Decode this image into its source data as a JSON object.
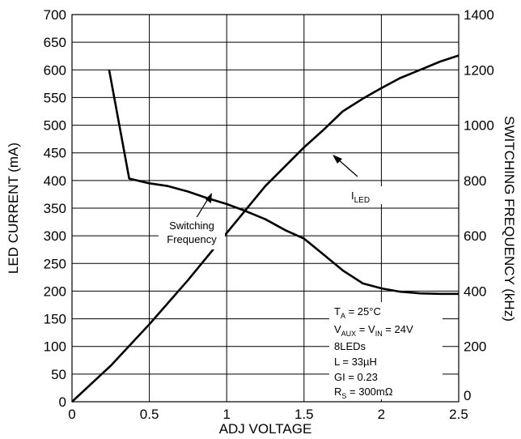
{
  "chart_data": {
    "type": "line",
    "xlabel": "ADJ VOLTAGE",
    "ylabel": "LED CURRENT (mA)",
    "y2label": "SWITCHING FREQUENCY (kHz)",
    "xlim": [
      0,
      2.5
    ],
    "ylim": [
      0,
      700
    ],
    "y2lim": [
      0,
      1400
    ],
    "x_ticks": [
      "0",
      "0.5",
      "1",
      "1.5",
      "2",
      "2.5"
    ],
    "y_ticks": [
      "0",
      "50",
      "100",
      "150",
      "200",
      "250",
      "300",
      "350",
      "400",
      "450",
      "500",
      "550",
      "600",
      "650",
      "700"
    ],
    "y2_ticks": [
      "0",
      "200",
      "400",
      "600",
      "800",
      "1000",
      "1200",
      "1400"
    ],
    "grid": true,
    "series": [
      {
        "name": "ILED",
        "axis": "left",
        "x": [
          0,
          0.25,
          0.5,
          0.75,
          1.0,
          1.25,
          1.5,
          1.62,
          1.75,
          1.88,
          2.0,
          2.12,
          2.25,
          2.38,
          2.5
        ],
        "y": [
          0,
          65,
          140,
          220,
          305,
          390,
          460,
          490,
          525,
          548,
          567,
          585,
          600,
          615,
          626
        ]
      },
      {
        "name": "Switching Frequency",
        "axis": "right",
        "x": [
          0.24,
          0.37,
          0.5,
          0.62,
          0.75,
          0.88,
          1.0,
          1.12,
          1.25,
          1.38,
          1.5,
          1.62,
          1.75,
          1.88,
          2.0,
          2.12,
          2.25,
          2.38,
          2.5
        ],
        "y": [
          1200,
          807,
          790,
          780,
          760,
          735,
          715,
          690,
          660,
          620,
          590,
          535,
          475,
          428,
          410,
          398,
          392,
          390,
          390
        ]
      }
    ],
    "annotations": {
      "iled_label": "I",
      "iled_label_sub": "LED",
      "freq_label_line1": "Switching",
      "freq_label_line2": "Frequency"
    },
    "conditions": {
      "ta_main": "T",
      "ta_sub": "A",
      "ta_rest": " = 25°C",
      "vaux_main": "V",
      "vaux_sub": "AUX",
      "vaux_mid": " = V",
      "vin_sub": "IN",
      "vaux_rest": " = 24V",
      "leds": "8LEDs",
      "inductor": "L = 33µH",
      "gi": "GI = 0.23",
      "rs_main": "R",
      "rs_sub": "S",
      "rs_rest": " = 300mΩ"
    }
  }
}
